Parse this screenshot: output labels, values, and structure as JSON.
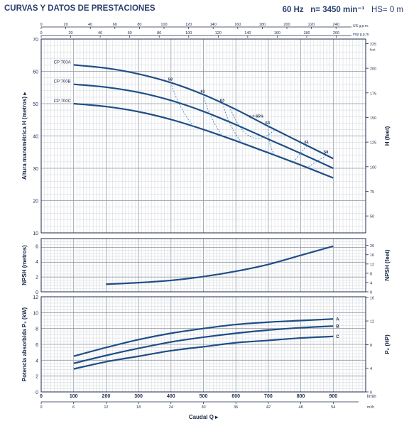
{
  "header": {
    "title": "CURVAS Y DATOS DE PRESTACIONES",
    "freq": "60 Hz",
    "speed": "n= 3450 min⁻¹",
    "hs": "HS= 0 m"
  },
  "colors": {
    "curve": "#1f4e86",
    "eff": "#3a8ac8",
    "grid_minor": "#cfd3da",
    "grid_major": "#8f96a3",
    "axis": "#1b2a4a"
  },
  "chart_data": [
    {
      "type": "line",
      "name": "head",
      "ylabel": "Altura manométrica H (metros)",
      "ylabel_right": "H (feet)",
      "ylim": [
        10,
        70
      ],
      "yticks": [
        10,
        20,
        30,
        40,
        50,
        60,
        70
      ],
      "yticks_right": [
        50,
        75,
        100,
        125,
        150,
        175,
        200,
        225
      ],
      "right_unit": "feet",
      "top_axis_us_label": "US g.p.m.",
      "top_axis_imp_label": "Imp g.p.m.",
      "top_ticks_us": [
        0,
        20,
        40,
        60,
        80,
        100,
        120,
        140,
        160,
        180,
        200,
        220,
        240
      ],
      "top_ticks_imp": [
        0,
        20,
        40,
        60,
        80,
        100,
        120,
        140,
        160,
        180,
        200
      ],
      "series": [
        {
          "name": "CP 700A",
          "x": [
            100,
            200,
            300,
            400,
            500,
            600,
            700,
            800,
            900
          ],
          "y": [
            62.0,
            61.0,
            59.2,
            56.5,
            52.8,
            48.2,
            43.0,
            38.0,
            33.0
          ]
        },
        {
          "name": "CP 700B",
          "x": [
            100,
            200,
            300,
            400,
            500,
            600,
            700,
            800,
            900
          ],
          "y": [
            56.0,
            55.1,
            53.5,
            51.0,
            47.6,
            43.5,
            39.0,
            34.6,
            30.0
          ]
        },
        {
          "name": "CP 700C",
          "x": [
            100,
            200,
            300,
            400,
            500,
            600,
            700,
            800,
            900
          ],
          "y": [
            50.0,
            49.1,
            47.5,
            45.1,
            42.0,
            38.5,
            34.8,
            31.0,
            27.0
          ]
        }
      ],
      "efficiency_labels": [
        "58",
        "61",
        "63",
        "η = 65%",
        "63",
        "61",
        "58"
      ]
    },
    {
      "type": "line",
      "name": "npsh",
      "ylabel": "NPSH (metros)",
      "ylabel_right": "NPSH (feet)",
      "ylim": [
        0,
        7
      ],
      "yticks": [
        0,
        2,
        4,
        6
      ],
      "yticks_right": [
        0,
        4,
        8,
        12,
        16,
        20
      ],
      "series": [
        {
          "name": "NPSH",
          "x": [
            200,
            300,
            400,
            500,
            600,
            700,
            800,
            900
          ],
          "y": [
            1.0,
            1.2,
            1.5,
            2.0,
            2.7,
            3.6,
            4.8,
            6.0
          ]
        }
      ]
    },
    {
      "type": "line",
      "name": "power",
      "ylabel": "Potencia absorbida P₂ (kW)",
      "ylabel_right": "P₂ (HP)",
      "ylim": [
        0,
        12
      ],
      "yticks": [
        0,
        2,
        4,
        6,
        8,
        10,
        12
      ],
      "yticks_right": [
        0,
        4,
        8,
        12,
        16
      ],
      "series": [
        {
          "name": "A",
          "x": [
            100,
            200,
            300,
            400,
            500,
            600,
            700,
            800,
            900
          ],
          "y": [
            4.5,
            5.6,
            6.6,
            7.4,
            8.0,
            8.5,
            8.8,
            9.0,
            9.2
          ]
        },
        {
          "name": "B",
          "x": [
            100,
            200,
            300,
            400,
            500,
            600,
            700,
            800,
            900
          ],
          "y": [
            3.6,
            4.6,
            5.5,
            6.3,
            6.9,
            7.4,
            7.8,
            8.1,
            8.3
          ]
        },
        {
          "name": "C",
          "x": [
            100,
            200,
            300,
            400,
            500,
            600,
            700,
            800,
            900
          ],
          "y": [
            2.9,
            3.8,
            4.5,
            5.2,
            5.7,
            6.2,
            6.5,
            6.8,
            7.0
          ]
        }
      ],
      "xlabel": "Caudal Q ▸",
      "x_unit": "l/min",
      "x2_unit": "m³/h",
      "xticks": [
        0,
        100,
        200,
        300,
        400,
        500,
        600,
        700,
        800,
        900
      ],
      "xticks_m3h": [
        0,
        6,
        12,
        18,
        24,
        30,
        36,
        42,
        48,
        54
      ],
      "xlim": [
        0,
        1000
      ]
    }
  ]
}
